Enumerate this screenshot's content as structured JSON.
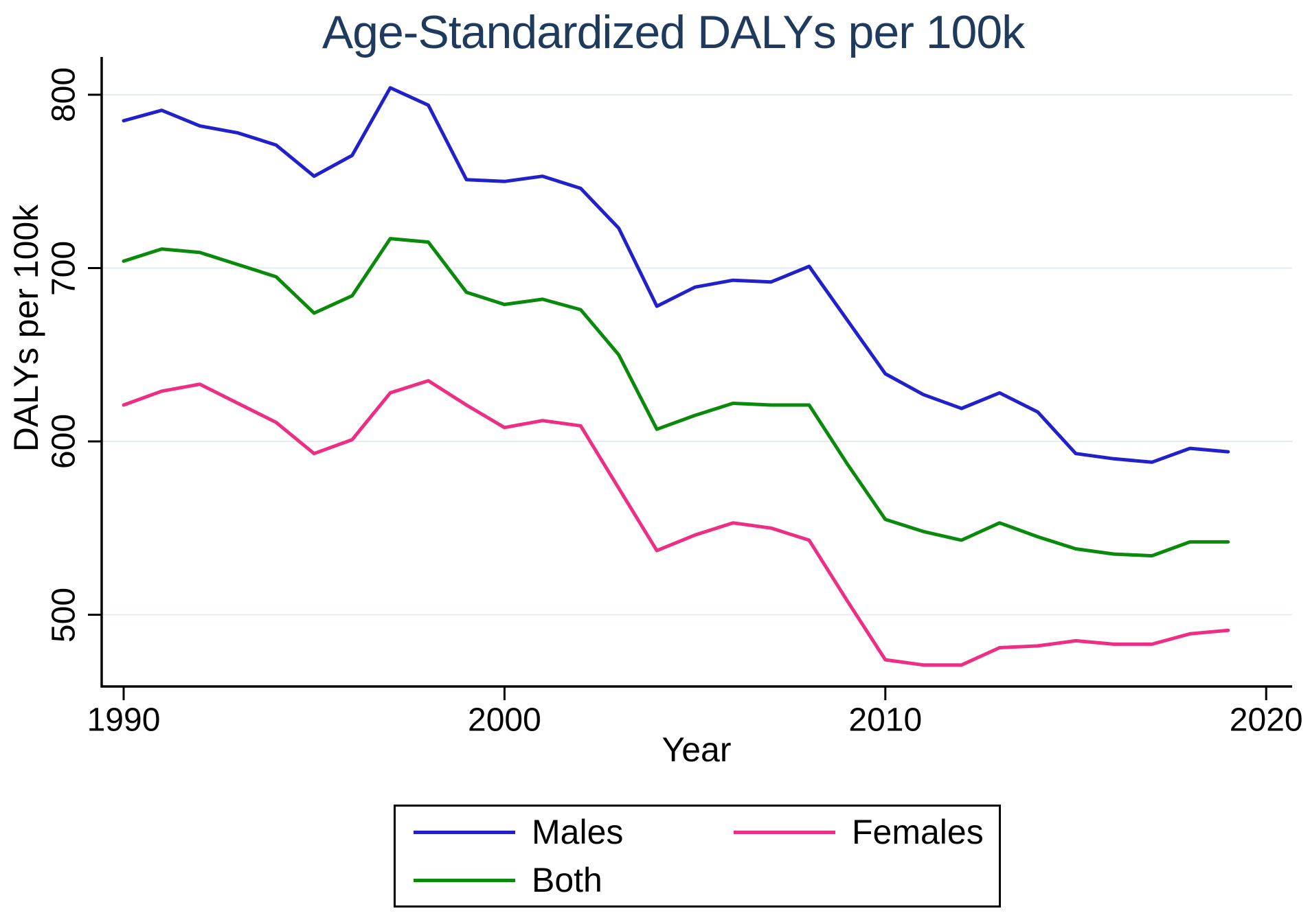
{
  "title": "Age-Standardized DALYs per 100k",
  "colors": {
    "males": "#2121cc",
    "females": "#ee2e84",
    "both": "#0a8a0a",
    "title_text": "#1e3a5c",
    "grid": "#e2ecf2",
    "axis": "#000000"
  },
  "axes": {
    "y_title": "DALYs per 100k",
    "x_title": "Year",
    "y_tick_labels": [
      "800",
      "700",
      "600",
      "500"
    ],
    "x_tick_labels": [
      "1990",
      "2000",
      "2010",
      "2020"
    ]
  },
  "legend": {
    "entries": [
      {
        "label": "Males",
        "color_key": "males"
      },
      {
        "label": "Females",
        "color_key": "females"
      },
      {
        "label": "Both",
        "color_key": "both"
      }
    ]
  },
  "chart_data": {
    "type": "line",
    "title": "Age-Standardized DALYs per 100k",
    "xlabel": "Year",
    "ylabel": "DALYs per 100k",
    "x_ticks": [
      1990,
      2000,
      2010,
      2020
    ],
    "y_ticks": [
      800,
      700,
      600,
      500
    ],
    "xlim": [
      1989.4,
      2020.7
    ],
    "ylim": [
      459,
      821
    ],
    "grid": "horizontal-only",
    "legend_position": "bottom",
    "x": [
      1990,
      1991,
      1992,
      1993,
      1994,
      1995,
      1996,
      1997,
      1998,
      1999,
      2000,
      2001,
      2002,
      2003,
      2004,
      2005,
      2006,
      2007,
      2008,
      2009,
      2010,
      2011,
      2012,
      2013,
      2014,
      2015,
      2016,
      2017,
      2018,
      2019
    ],
    "series": [
      {
        "name": "Males",
        "color_key": "males",
        "values": [
          785,
          791,
          782,
          778,
          771,
          753,
          765,
          804,
          794,
          751,
          750,
          753,
          746,
          723,
          678,
          689,
          693,
          692,
          701,
          670,
          639,
          627,
          619,
          628,
          617,
          593,
          590,
          588,
          596,
          594
        ]
      },
      {
        "name": "Females",
        "color_key": "females",
        "values": [
          621,
          629,
          633,
          622,
          611,
          593,
          601,
          628,
          635,
          621,
          608,
          612,
          609,
          573,
          537,
          546,
          553,
          550,
          543,
          508,
          474,
          471,
          471,
          481,
          482,
          485,
          483,
          483,
          489,
          491
        ]
      },
      {
        "name": "Both",
        "color_key": "both",
        "values": [
          704,
          711,
          709,
          702,
          695,
          674,
          684,
          717,
          715,
          686,
          679,
          682,
          676,
          650,
          607,
          615,
          622,
          621,
          621,
          587,
          555,
          548,
          543,
          553,
          545,
          538,
          535,
          534,
          542,
          542
        ]
      }
    ]
  }
}
